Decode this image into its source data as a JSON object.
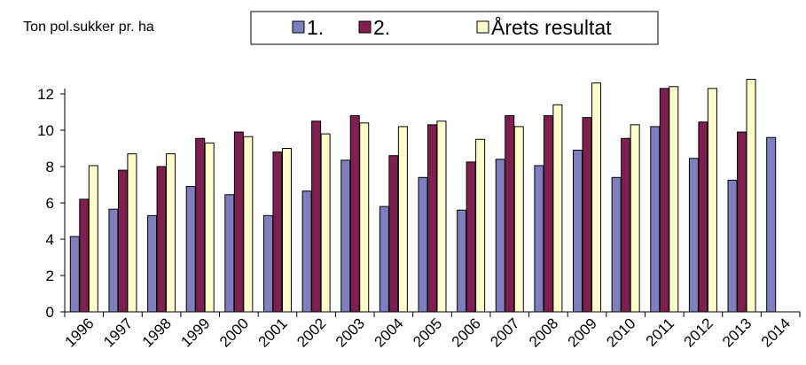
{
  "chart_data": {
    "type": "bar",
    "y_label": "Ton pol.sukker pr. ha",
    "categories": [
      "1996",
      "1997",
      "1998",
      "1999",
      "2000",
      "2001",
      "2002",
      "2003",
      "2004",
      "2005",
      "2006",
      "2007",
      "2008",
      "2009",
      "2010",
      "2011",
      "2012",
      "2013",
      "2014"
    ],
    "series": [
      {
        "name": "1.",
        "color": "#7f7fbf",
        "values": [
          4.15,
          5.65,
          5.3,
          6.9,
          6.45,
          5.3,
          6.65,
          8.35,
          5.8,
          7.4,
          5.6,
          8.4,
          8.05,
          8.9,
          7.4,
          10.2,
          8.45,
          7.25,
          9.6
        ]
      },
      {
        "name": "2.",
        "color": "#7f1f4f",
        "values": [
          6.2,
          7.8,
          8.0,
          9.55,
          9.9,
          8.8,
          10.5,
          10.8,
          8.6,
          10.3,
          8.25,
          10.8,
          10.8,
          10.7,
          9.55,
          12.3,
          10.45,
          9.9,
          null
        ]
      },
      {
        "name": "Årets resultat",
        "color": "#ffffcc",
        "values": [
          8.05,
          8.7,
          8.7,
          9.3,
          9.65,
          9.0,
          9.8,
          10.4,
          10.2,
          10.5,
          9.5,
          10.2,
          11.4,
          12.6,
          10.3,
          12.4,
          12.3,
          12.8,
          null
        ]
      }
    ],
    "ylim": [
      0,
      12.3
    ],
    "yticks": [
      0,
      2,
      4,
      6,
      8,
      10,
      12
    ]
  }
}
